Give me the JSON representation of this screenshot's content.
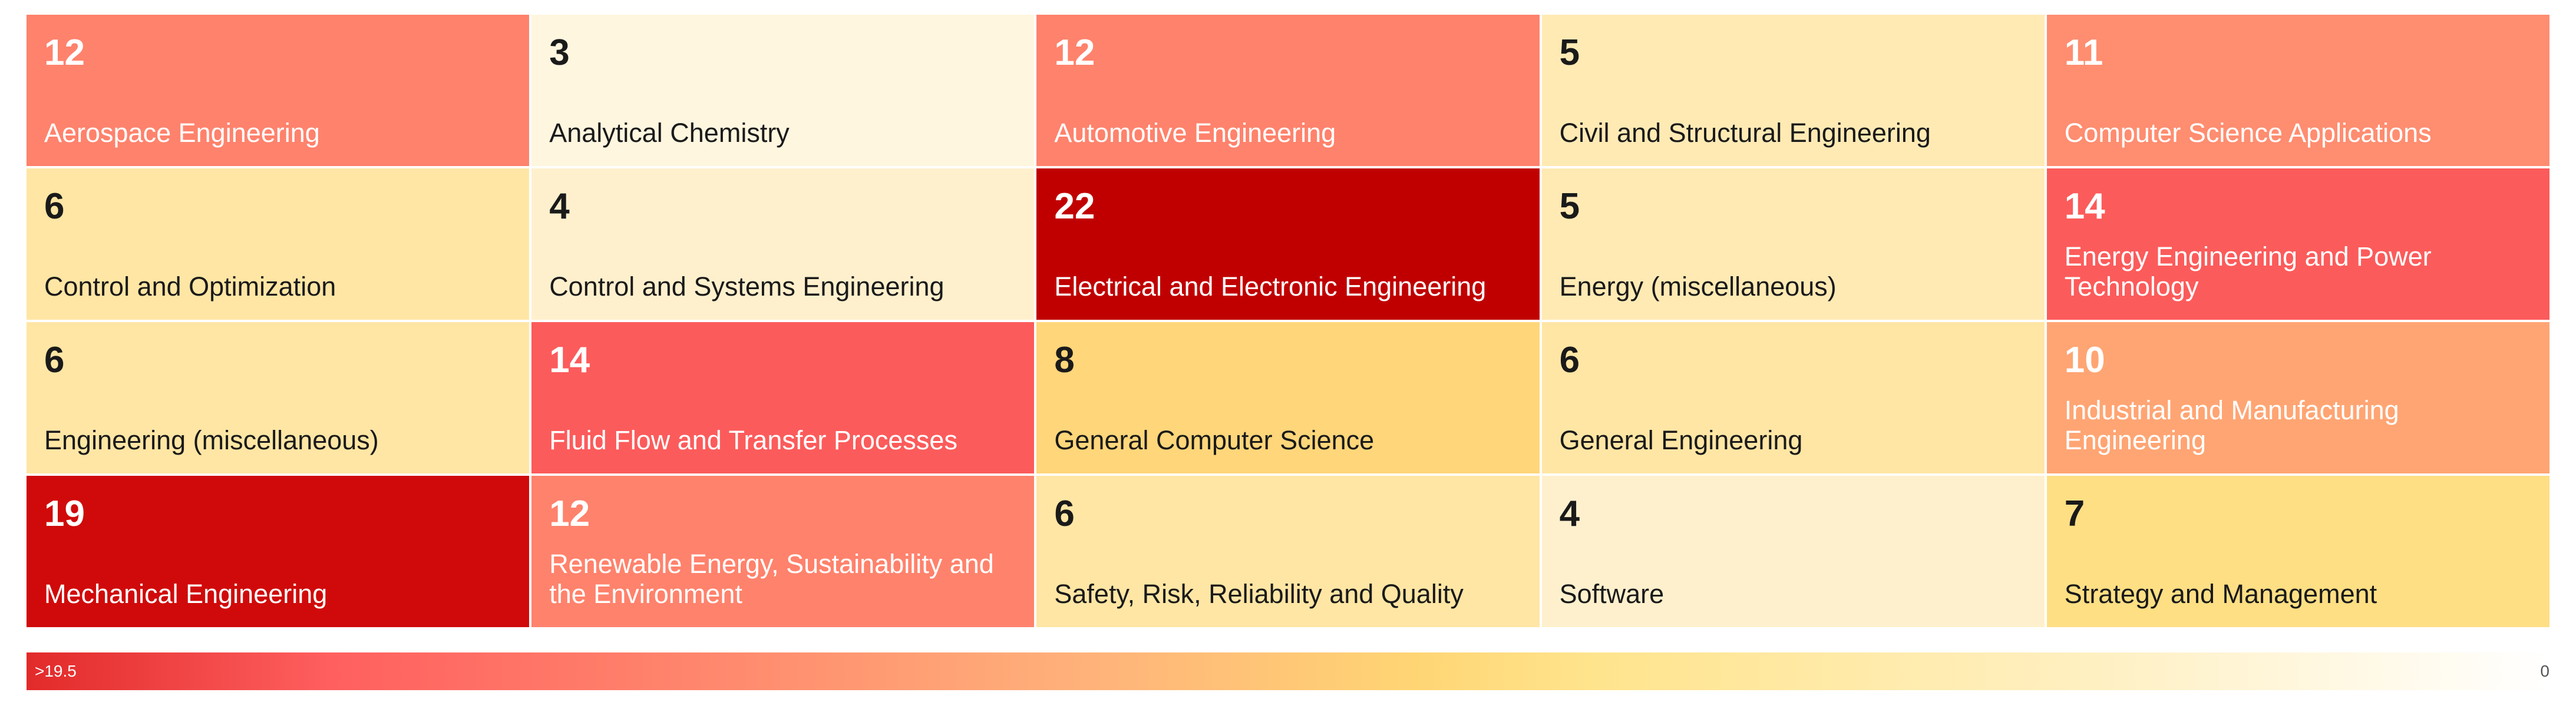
{
  "chart_data": {
    "type": "heatmap",
    "title": "",
    "cells": [
      {
        "label": "Aerospace Engineering",
        "value": 12,
        "color": "#ff826c"
      },
      {
        "label": "Analytical Chemistry",
        "value": 3,
        "color": "#fff6df"
      },
      {
        "label": "Automotive Engineering",
        "value": 12,
        "color": "#ff826c"
      },
      {
        "label": "Civil and Structural Engineering",
        "value": 5,
        "color": "#ffeab4"
      },
      {
        "label": "Computer Science Applications",
        "value": 11,
        "color": "#ff8d70"
      },
      {
        "label": "Control and Optimization",
        "value": 6,
        "color": "#ffe6a4"
      },
      {
        "label": "Control and Systems Engineering",
        "value": 4,
        "color": "#fff0cd"
      },
      {
        "label": "Electrical and Electronic Engineering",
        "value": 22,
        "color": "#c00000"
      },
      {
        "label": "Energy (miscellaneous)",
        "value": 5,
        "color": "#ffeab4"
      },
      {
        "label": "Energy Engineering and Power Technology",
        "value": 14,
        "color": "#fc5b5b"
      },
      {
        "label": "Engineering (miscellaneous)",
        "value": 6,
        "color": "#ffe6a4"
      },
      {
        "label": "Fluid Flow and Transfer Processes",
        "value": 14,
        "color": "#fc5b5b"
      },
      {
        "label": "General Computer Science",
        "value": 8,
        "color": "#ffd67a"
      },
      {
        "label": "General Engineering",
        "value": 6,
        "color": "#ffe6a4"
      },
      {
        "label": "Industrial and Manufacturing Engineering",
        "value": 10,
        "color": "#ffa573"
      },
      {
        "label": "Mechanical Engineering",
        "value": 19,
        "color": "#d00a0a"
      },
      {
        "label": "Renewable Energy, Sustainability and the Environment",
        "value": 12,
        "color": "#ff826c"
      },
      {
        "label": "Safety, Risk, Reliability and Quality",
        "value": 6,
        "color": "#ffe6a4"
      },
      {
        "label": "Software",
        "value": 4,
        "color": "#fff0cd"
      },
      {
        "label": "Strategy and Management",
        "value": 7,
        "color": "#ffdf84"
      }
    ],
    "legend": {
      "max_label": ">19.5",
      "min_label": "0"
    }
  }
}
